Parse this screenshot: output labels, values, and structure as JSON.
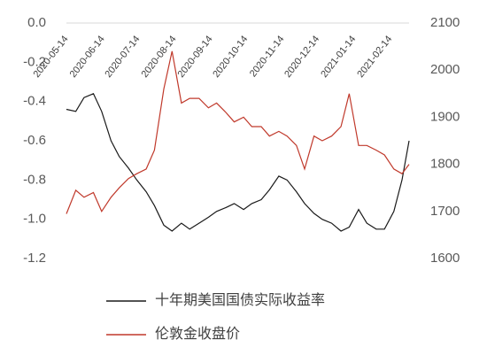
{
  "chart_data": {
    "type": "line",
    "x": [
      "2020-05-14",
      "2020-05-22",
      "2020-05-29",
      "2020-06-06",
      "2020-06-13",
      "2020-06-21",
      "2020-06-28",
      "2020-07-06",
      "2020-07-13",
      "2020-07-21",
      "2020-07-28",
      "2020-08-05",
      "2020-08-12",
      "2020-08-20",
      "2020-08-27",
      "2020-09-04",
      "2020-09-12",
      "2020-09-19",
      "2020-09-27",
      "2020-10-04",
      "2020-10-12",
      "2020-10-19",
      "2020-10-27",
      "2020-11-03",
      "2020-11-11",
      "2020-11-18",
      "2020-11-26",
      "2020-12-03",
      "2020-12-11",
      "2020-12-18",
      "2020-12-26",
      "2021-01-03",
      "2021-01-10",
      "2021-01-18",
      "2021-01-25",
      "2021-02-02",
      "2021-02-09",
      "2021-02-17",
      "2021-02-24",
      "2021-03-02"
    ],
    "xlim": [
      "2020-05-14",
      "2021-03-02"
    ],
    "xticks": [
      "2020-05-14",
      "2020-06-14",
      "2020-07-14",
      "2020-08-14",
      "2020-09-14",
      "2020-10-14",
      "2020-11-14",
      "2020-12-14",
      "2021-01-14",
      "2021-02-14"
    ],
    "ylim": [
      -1.2,
      0
    ],
    "yticks": [
      {
        "value": 0,
        "label": "0.0"
      },
      -0.2,
      -0.4,
      -0.6,
      -0.8,
      {
        "value": -1,
        "label": "-1.0"
      },
      -1.2
    ],
    "y2lim": [
      1600,
      2100
    ],
    "y2ticks": [
      2100,
      2000,
      1900,
      1800,
      1700,
      1600
    ],
    "grid": false,
    "series": [
      {
        "name": "十年期美国国债实际收益率",
        "color": "#1a1a1a",
        "values": [
          -0.44,
          -0.45,
          -0.38,
          -0.36,
          -0.45,
          -0.6,
          -0.68,
          -0.74,
          -0.8,
          -0.86,
          -0.93,
          -1.03,
          -1.06,
          -1.02,
          -1.05,
          -1.02,
          -0.99,
          -0.96,
          -0.94,
          -0.92,
          -0.95,
          -0.92,
          -0.9,
          -0.85,
          -0.78,
          -0.8,
          -0.86,
          -0.92,
          -0.97,
          -1.0,
          -1.02,
          -1.06,
          -1.04,
          -0.95,
          -1.02,
          -1.05,
          -1.05,
          -0.96,
          -0.8,
          -0.6
        ]
      },
      {
        "name": "伦敦金收盘价",
        "color": "#c0392b",
        "axis": "y2",
        "values": [
          1695,
          1745,
          1730,
          1740,
          1700,
          1730,
          1750,
          1770,
          1780,
          1790,
          1830,
          1960,
          2040,
          1930,
          1940,
          1940,
          1920,
          1930,
          1910,
          1890,
          1900,
          1880,
          1880,
          1860,
          1870,
          1860,
          1840,
          1790,
          1860,
          1850,
          1860,
          1880,
          1950,
          1840,
          1840,
          1830,
          1820,
          1790,
          1780,
          1800
        ]
      }
    ]
  }
}
